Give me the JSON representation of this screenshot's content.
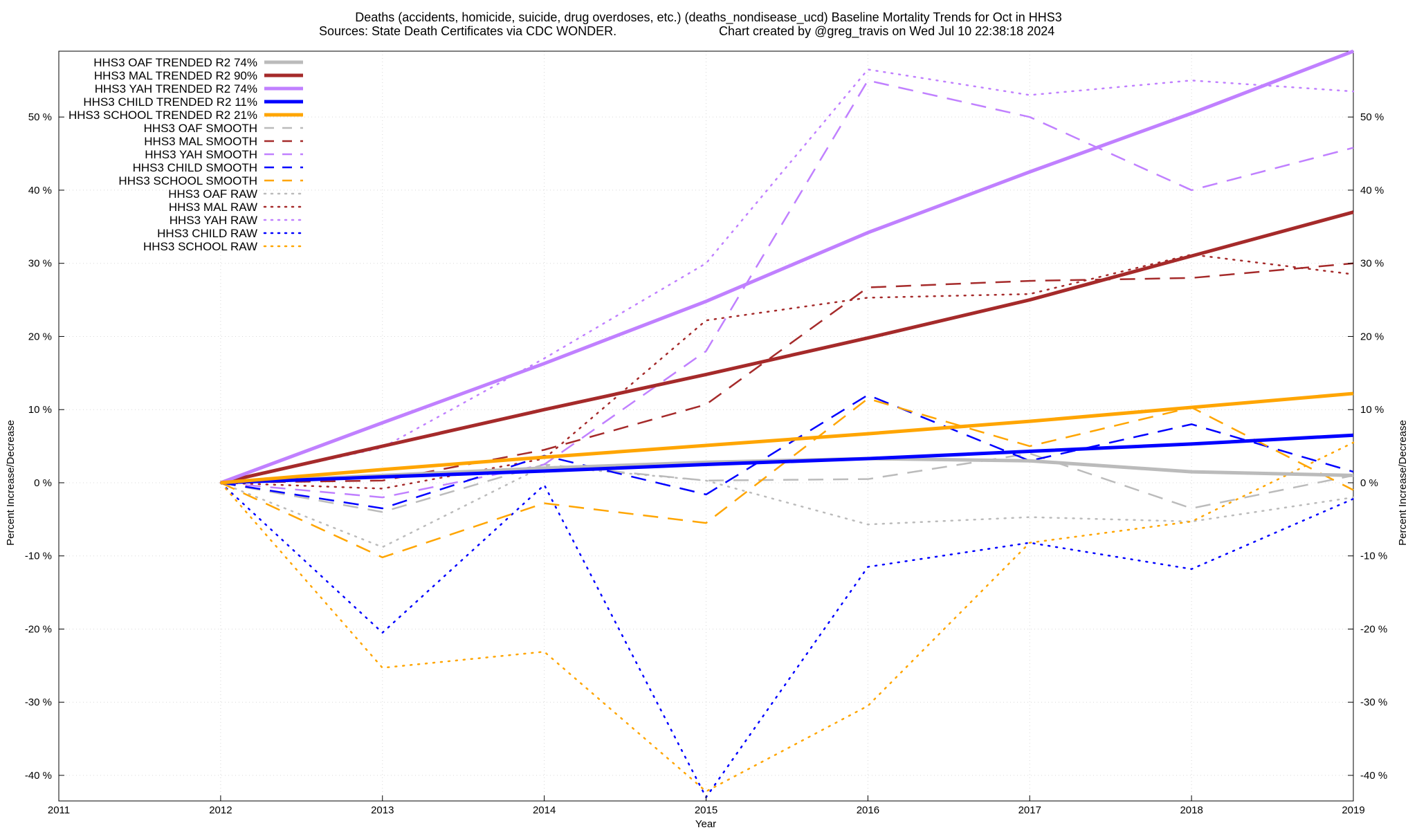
{
  "chart_data": {
    "type": "line",
    "title": "Deaths (accidents, homicide, suicide, drug overdoses, etc.) (deaths_nondisease_ucd)  Baseline Mortality Trends for Oct in HHS3",
    "subtitle_left": "Sources: State Death Certificates via CDC WONDER.",
    "subtitle_right": "Chart created by @greg_travis on Wed Jul 10 22:38:18 2024",
    "xlabel": "Year",
    "ylabel_left": "Percent Increase/Decrease",
    "ylabel_right": "Percent Increase/Decrease",
    "xlim": [
      2011,
      2019
    ],
    "ylim": [
      -43.5,
      59
    ],
    "x_ticks": [
      2011,
      2012,
      2013,
      2014,
      2015,
      2016,
      2017,
      2018,
      2019
    ],
    "x_tick_labels": [
      "2011",
      "2012",
      "2013",
      "2014",
      "2015",
      "2016",
      "2017",
      "2018",
      "2019"
    ],
    "y_ticks": [
      -40,
      -30,
      -20,
      -10,
      0,
      10,
      20,
      30,
      40,
      50
    ],
    "y_tick_labels": [
      "-40 %",
      "-30 %",
      "-20 %",
      "-10 %",
      "0 %",
      "10 %",
      "20 %",
      "30 %",
      "40 %",
      "50 %"
    ],
    "grid": true,
    "legend_position": "top-left",
    "x": [
      2012,
      2013,
      2014,
      2015,
      2016,
      2017,
      2018,
      2019
    ],
    "series": [
      {
        "name": "HHS3 OAF TRENDED R2  74%",
        "color": "#bbbbbb",
        "style": "trend",
        "values": [
          0,
          1.0,
          2.0,
          2.8,
          3.3,
          3.0,
          1.5,
          1.0
        ]
      },
      {
        "name": "HHS3 MAL TRENDED R2  90%",
        "color": "#a52a2a",
        "style": "trend",
        "values": [
          0,
          5.0,
          10.0,
          14.8,
          19.8,
          25.0,
          31.0,
          37.0
        ]
      },
      {
        "name": "HHS3 YAH TRENDED R2  74%",
        "color": "#c080ff",
        "style": "trend",
        "values": [
          0,
          8.2,
          16.3,
          24.8,
          34.2,
          42.5,
          50.5,
          59.0
        ]
      },
      {
        "name": "HHS3 CHILD TRENDED R2  11%",
        "color": "#0000ff",
        "style": "trend",
        "values": [
          0,
          0.8,
          1.6,
          2.5,
          3.3,
          4.3,
          5.3,
          6.5
        ]
      },
      {
        "name": "HHS3 SCHOOL TRENDED R2  21%",
        "color": "#ffa500",
        "style": "trend",
        "values": [
          0,
          1.8,
          3.5,
          5.1,
          6.7,
          8.4,
          10.3,
          12.2
        ]
      },
      {
        "name": "HHS3 OAF SMOOTH",
        "color": "#bbbbbb",
        "style": "smooth",
        "values": [
          0,
          -4.0,
          2.5,
          0.3,
          0.5,
          4.0,
          -3.5,
          1.0
        ]
      },
      {
        "name": "HHS3 MAL SMOOTH",
        "color": "#a52a2a",
        "style": "smooth",
        "values": [
          0,
          0.3,
          4.5,
          10.7,
          26.7,
          27.6,
          28.0,
          30.0
        ]
      },
      {
        "name": "HHS3 YAH SMOOTH",
        "color": "#c080ff",
        "style": "smooth",
        "values": [
          0,
          -2.0,
          2.5,
          18.0,
          55.0,
          50.0,
          40.0,
          45.8
        ]
      },
      {
        "name": "HHS3 CHILD SMOOTH",
        "color": "#0000ff",
        "style": "smooth",
        "values": [
          0,
          -3.5,
          3.7,
          -1.6,
          12.0,
          3.0,
          8.0,
          1.5
        ]
      },
      {
        "name": "HHS3 SCHOOL SMOOTH",
        "color": "#ffa500",
        "style": "smooth",
        "values": [
          0,
          -10.2,
          -2.8,
          -5.5,
          11.5,
          5.0,
          10.3,
          -1.0
        ]
      },
      {
        "name": "HHS3 OAF RAW",
        "color": "#bbbbbb",
        "style": "raw",
        "values": [
          0,
          -8.8,
          2.3,
          0.3,
          -5.7,
          -4.7,
          -5.3,
          -2.0
        ]
      },
      {
        "name": "HHS3 MAL RAW",
        "color": "#a52a2a",
        "style": "raw",
        "values": [
          0,
          -0.8,
          3.3,
          22.2,
          25.3,
          25.8,
          31.2,
          28.5
        ]
      },
      {
        "name": "HHS3 YAH RAW",
        "color": "#c080ff",
        "style": "raw",
        "values": [
          0,
          4.8,
          17.0,
          30.0,
          56.5,
          53.0,
          55.0,
          53.5
        ]
      },
      {
        "name": "HHS3 CHILD RAW",
        "color": "#0000ff",
        "style": "raw",
        "values": [
          0,
          -20.5,
          -0.3,
          -43.0,
          -11.5,
          -8.2,
          -11.8,
          -2.2
        ]
      },
      {
        "name": "HHS3 SCHOOL RAW",
        "color": "#ffa500",
        "style": "raw",
        "values": [
          0,
          -25.3,
          -23.1,
          -42.2,
          -30.5,
          -8.2,
          -5.3,
          5.5
        ]
      }
    ]
  }
}
